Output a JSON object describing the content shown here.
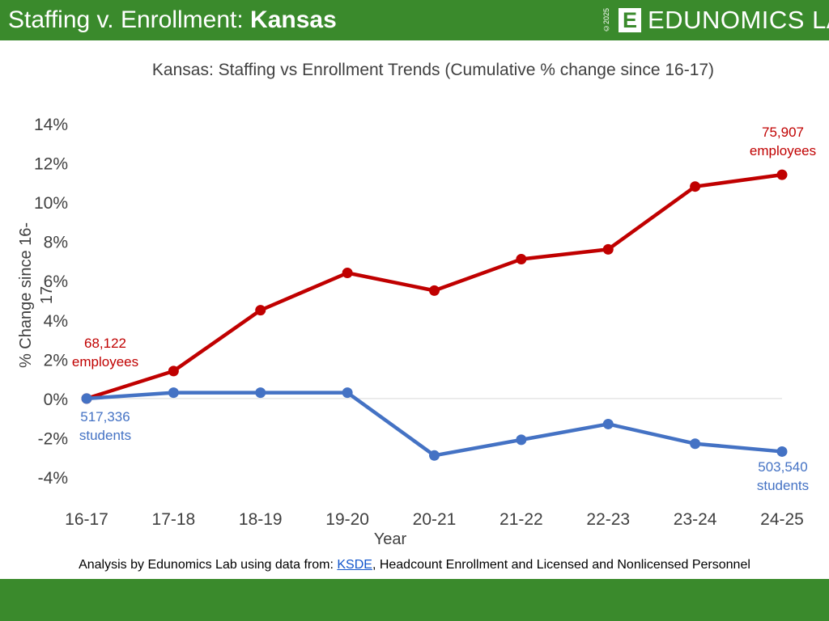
{
  "header": {
    "title_prefix": "Staffing v. Enrollment: ",
    "title_bold": "Kansas",
    "copyright": "©2025",
    "logo_letter": "E",
    "logo_text": "EDUNOMICS LAB"
  },
  "colors": {
    "brand_green": "#3a8a2c",
    "staff_red": "#c00000",
    "enroll_blue": "#4472c4"
  },
  "footer": {
    "source_prefix": "Analysis by Edunomics Lab using data from: ",
    "source_link": "KSDE",
    "source_suffix": ", Headcount Enrollment and Licensed and Nonlicensed Personnel"
  },
  "chart_data": {
    "type": "line",
    "title": "Kansas: Staffing vs Enrollment Trends (Cumulative % change since 16-17)",
    "xlabel": "Year",
    "ylabel": "% Change since 16-17",
    "categories": [
      "16-17",
      "17-18",
      "18-19",
      "19-20",
      "20-21",
      "21-22",
      "22-23",
      "23-24",
      "24-25"
    ],
    "ylim": [
      -4,
      14
    ],
    "yticks": [
      "-4%",
      "-2%",
      "0%",
      "2%",
      "4%",
      "6%",
      "8%",
      "10%",
      "12%",
      "14%"
    ],
    "grid": false,
    "legend": "none",
    "series": [
      {
        "color": "#c00000",
        "values": [
          0,
          1.4,
          4.5,
          6.4,
          5.5,
          7.1,
          7.6,
          10.8,
          11.4
        ]
      },
      {
        "color": "#4472c4",
        "values": [
          0,
          0.3,
          0.3,
          0.3,
          -2.9,
          -2.1,
          -1.3,
          -2.3,
          -2.7
        ]
      }
    ],
    "annotations": {
      "staff_start": [
        "68,122",
        "employees"
      ],
      "staff_end": [
        "75,907",
        "employees"
      ],
      "enroll_start": [
        "517,336",
        "students"
      ],
      "enroll_end": [
        "503,540",
        "students"
      ]
    }
  }
}
